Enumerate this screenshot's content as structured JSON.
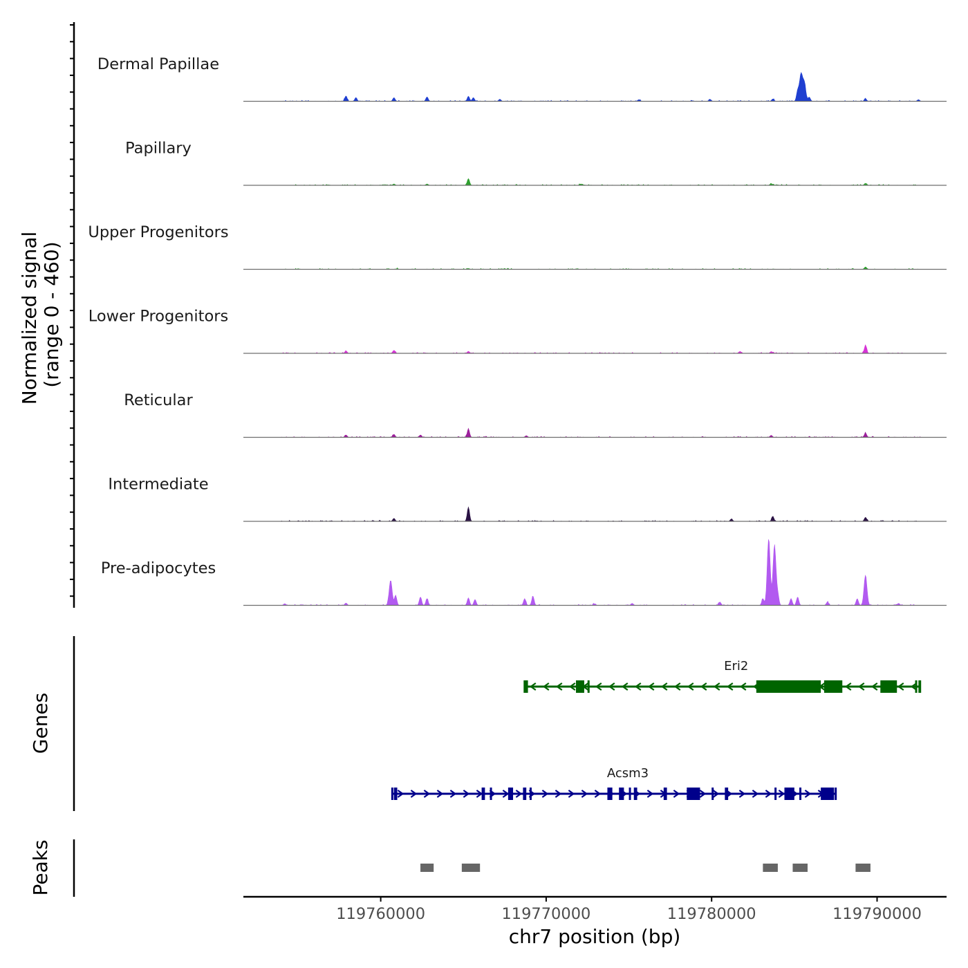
{
  "chart_data": {
    "type": "area",
    "title": "",
    "chromosome": "chr7",
    "xlabel": "chr7 position (bp)",
    "ylabel": "Normalized signal",
    "ylabel_range": "(range 0 - 460)",
    "xlim": [
      119751700,
      119794200
    ],
    "ylim": [
      0,
      460
    ],
    "x_ticks": [
      119760000,
      119770000,
      119780000,
      119790000
    ],
    "x_tick_labels": [
      "119760000",
      "119770000",
      "119780000",
      "119790000"
    ],
    "tracks": [
      {
        "name": "Dermal Papillae",
        "color": "#1f3fd1",
        "peaks": [
          [
            119757900,
            32
          ],
          [
            119758500,
            22
          ],
          [
            119760800,
            22
          ],
          [
            119762800,
            26
          ],
          [
            119765300,
            30
          ],
          [
            119765600,
            22
          ],
          [
            119767200,
            12
          ],
          [
            119775600,
            10
          ],
          [
            119779900,
            12
          ],
          [
            119783700,
            14
          ],
          [
            119785200,
            60
          ],
          [
            119785400,
            160
          ],
          [
            119785600,
            110
          ],
          [
            119785900,
            25
          ],
          [
            119789300,
            15
          ],
          [
            119792500,
            10
          ]
        ]
      },
      {
        "name": "Papillary",
        "color": "#2ea02e",
        "peaks": [
          [
            119760800,
            8
          ],
          [
            119762800,
            8
          ],
          [
            119765300,
            40
          ],
          [
            119772100,
            8
          ],
          [
            119783600,
            10
          ],
          [
            119789300,
            12
          ]
        ]
      },
      {
        "name": "Upper Progenitors",
        "color": "#2ea02e",
        "peaks": [
          [
            119761000,
            3
          ],
          [
            119765300,
            5
          ],
          [
            119789300,
            14
          ]
        ]
      },
      {
        "name": "Lower Progenitors",
        "color": "#d633d6",
        "peaks": [
          [
            119757900,
            14
          ],
          [
            119760800,
            18
          ],
          [
            119765300,
            12
          ],
          [
            119781700,
            10
          ],
          [
            119783600,
            10
          ],
          [
            119789300,
            48
          ]
        ]
      },
      {
        "name": "Reticular",
        "color": "#9c1f9c",
        "peaks": [
          [
            119757900,
            14
          ],
          [
            119760800,
            18
          ],
          [
            119762400,
            14
          ],
          [
            119765300,
            50
          ],
          [
            119768800,
            10
          ],
          [
            119783600,
            12
          ],
          [
            119789300,
            26
          ]
        ]
      },
      {
        "name": "Intermediate",
        "color": "#2a1244",
        "peaks": [
          [
            119760800,
            18
          ],
          [
            119765300,
            85
          ],
          [
            119781200,
            14
          ],
          [
            119783700,
            28
          ],
          [
            119789300,
            24
          ]
        ]
      },
      {
        "name": "Pre-adipocytes",
        "color": "#b25af0",
        "peaks": [
          [
            119754200,
            10
          ],
          [
            119757900,
            14
          ],
          [
            119760600,
            150
          ],
          [
            119760900,
            60
          ],
          [
            119762400,
            50
          ],
          [
            119762800,
            40
          ],
          [
            119765300,
            45
          ],
          [
            119765700,
            35
          ],
          [
            119768700,
            40
          ],
          [
            119769200,
            55
          ],
          [
            119772900,
            10
          ],
          [
            119775200,
            12
          ],
          [
            119780500,
            20
          ],
          [
            119783100,
            40
          ],
          [
            119783450,
            400
          ],
          [
            119783800,
            360
          ],
          [
            119784000,
            60
          ],
          [
            119784800,
            40
          ],
          [
            119785200,
            50
          ],
          [
            119787000,
            20
          ],
          [
            119788800,
            40
          ],
          [
            119789300,
            180
          ],
          [
            119791300,
            12
          ]
        ]
      }
    ],
    "genes": [
      {
        "name": "Eri2",
        "strand": "-",
        "color": "#006400",
        "start": 119768700,
        "end": 119792600,
        "exons": [
          [
            119768700,
            119768900
          ],
          [
            119771800,
            119772300
          ],
          [
            119772500,
            119772600
          ],
          [
            119782700,
            119786600
          ],
          [
            119786800,
            119787900
          ],
          [
            119790200,
            119791200
          ],
          [
            119792300,
            119792400
          ],
          [
            119792500,
            119792600
          ]
        ]
      },
      {
        "name": "Acsm3",
        "strand": "+",
        "color": "#00008b",
        "start": 119760700,
        "end": 119787500,
        "exons": [
          [
            119760800,
            119761000
          ],
          [
            119766100,
            119766300
          ],
          [
            119766600,
            119766700
          ],
          [
            119767700,
            119768000
          ],
          [
            119768600,
            119768800
          ],
          [
            119769000,
            119769100
          ],
          [
            119773700,
            119774000
          ],
          [
            119774400,
            119774700
          ],
          [
            119775000,
            119775100
          ],
          [
            119775300,
            119775500
          ],
          [
            119777100,
            119777300
          ],
          [
            119778500,
            119779300
          ],
          [
            119780000,
            119780100
          ],
          [
            119780800,
            119781000
          ],
          [
            119783800,
            119783900
          ],
          [
            119784400,
            119785000
          ],
          [
            119785300,
            119785400
          ],
          [
            119786600,
            119787400
          ]
        ]
      }
    ],
    "peaks_track": {
      "name": "Peaks",
      "regions": [
        [
          119762400,
          119763200
        ],
        [
          119764900,
          119766000
        ],
        [
          119783100,
          119784000
        ],
        [
          119784900,
          119785800
        ],
        [
          119788700,
          119789600
        ]
      ]
    },
    "panel_labels": {
      "genes": "Genes",
      "peaks": "Peaks"
    }
  }
}
